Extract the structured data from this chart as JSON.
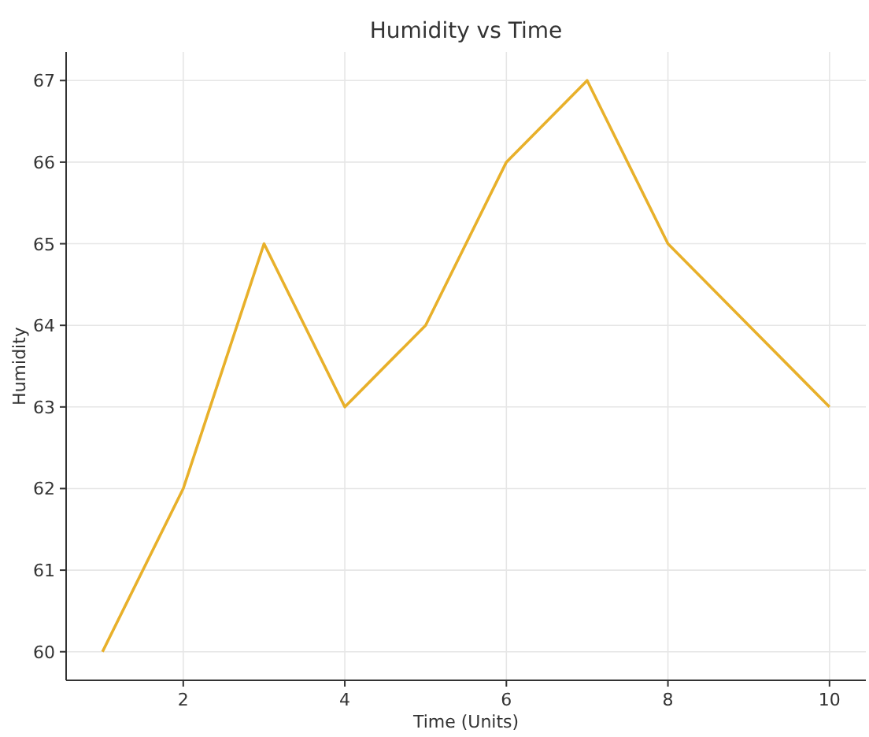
{
  "chart_data": {
    "type": "line",
    "title": "Humidity vs Time",
    "xlabel": "Time (Units)",
    "ylabel": "Humidity",
    "x": [
      1,
      2,
      3,
      4,
      5,
      6,
      7,
      8,
      9,
      10
    ],
    "series": [
      {
        "color": "#e8b02a",
        "values": [
          60,
          62,
          65,
          63,
          64,
          66,
          67,
          65,
          64,
          63
        ]
      }
    ],
    "xlim": [
      0.55,
      10.45
    ],
    "xticks": [
      2,
      4,
      6,
      8,
      10
    ],
    "ylim": [
      59.65,
      67.35
    ],
    "yticks": [
      60,
      61,
      62,
      63,
      64,
      65,
      66,
      67
    ],
    "grid": true,
    "marker": "none",
    "line_style": "solid"
  }
}
